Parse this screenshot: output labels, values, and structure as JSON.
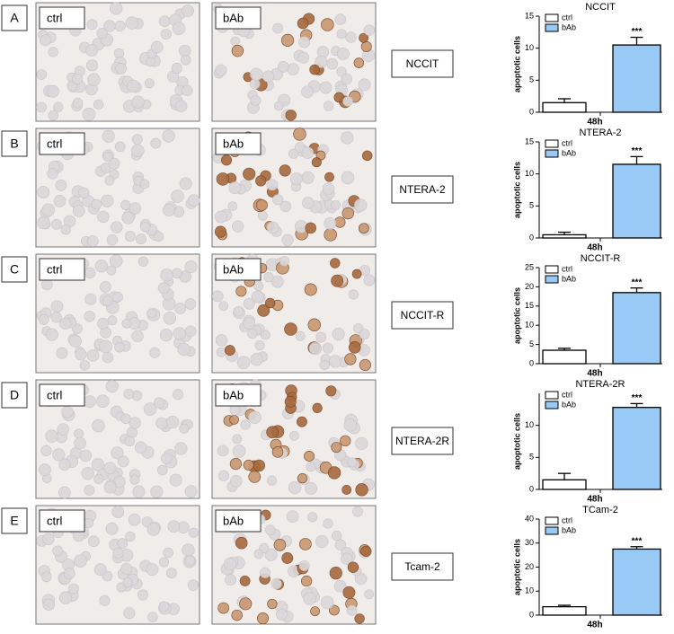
{
  "panels": [
    {
      "letter": "A",
      "ctrl_label": "ctrl",
      "bab_label": "bAb",
      "cell_line": "NCCIT"
    },
    {
      "letter": "B",
      "ctrl_label": "ctrl",
      "bab_label": "bAb",
      "cell_line": "NTERA-2"
    },
    {
      "letter": "C",
      "ctrl_label": "ctrl",
      "bab_label": "bAb",
      "cell_line": "NCCIT-R"
    },
    {
      "letter": "D",
      "ctrl_label": "ctrl",
      "bab_label": "bAb",
      "cell_line": "NTERA-2R"
    },
    {
      "letter": "E",
      "ctrl_label": "ctrl",
      "bab_label": "bAb",
      "cell_line": "Tcam-2"
    }
  ],
  "chart_data": [
    {
      "type": "bar",
      "title": "NCCIT",
      "y_label": "apoptotic cells",
      "categories": [
        "48h"
      ],
      "annotation": "***",
      "ylim": [
        0,
        15
      ],
      "yticks": [
        0,
        5,
        10,
        15
      ],
      "series": [
        {
          "name": "ctrl",
          "color": "#ffffff",
          "values": [
            1.5
          ],
          "errors": [
            0.6
          ]
        },
        {
          "name": "bAb",
          "color": "#99c9f5",
          "values": [
            10.5
          ],
          "errors": [
            1.2
          ]
        }
      ]
    },
    {
      "type": "bar",
      "title": "NTERA-2",
      "y_label": "apoptotic cells",
      "categories": [
        "48h"
      ],
      "annotation": "***",
      "ylim": [
        0,
        15
      ],
      "yticks": [
        0,
        5,
        10,
        15
      ],
      "series": [
        {
          "name": "ctrl",
          "color": "#ffffff",
          "values": [
            0.5
          ],
          "errors": [
            0.4
          ]
        },
        {
          "name": "bAb",
          "color": "#99c9f5",
          "values": [
            11.5
          ],
          "errors": [
            1.2
          ]
        }
      ]
    },
    {
      "type": "bar",
      "title": "NCCIT-R",
      "y_label": "apoptotic cells",
      "categories": [
        "48h"
      ],
      "annotation": "***",
      "ylim": [
        0,
        25
      ],
      "yticks": [
        0,
        5,
        10,
        15,
        20,
        25
      ],
      "series": [
        {
          "name": "ctrl",
          "color": "#ffffff",
          "values": [
            3.5
          ],
          "errors": [
            0.5
          ]
        },
        {
          "name": "bAb",
          "color": "#99c9f5",
          "values": [
            18.5
          ],
          "errors": [
            1.2
          ]
        }
      ]
    },
    {
      "type": "bar",
      "title": "NTERA-2R",
      "y_label": "apoptotic cells",
      "categories": [
        "48h"
      ],
      "annotation": "***",
      "ylim": [
        0,
        15
      ],
      "yticks": [
        0,
        5,
        10
      ],
      "series": [
        {
          "name": "ctrl",
          "color": "#ffffff",
          "values": [
            1.5
          ],
          "errors": [
            1.0
          ]
        },
        {
          "name": "bAb",
          "color": "#99c9f5",
          "values": [
            12.8
          ],
          "errors": [
            0.6
          ]
        }
      ]
    },
    {
      "type": "bar",
      "title": "TCam-2",
      "y_label": "apoptotic cells",
      "categories": [
        "48h"
      ],
      "annotation": "***",
      "ylim": [
        0,
        40
      ],
      "yticks": [
        0,
        10,
        20,
        30,
        40
      ],
      "series": [
        {
          "name": "ctrl",
          "color": "#ffffff",
          "values": [
            3.5
          ],
          "errors": [
            0.6
          ]
        },
        {
          "name": "bAb",
          "color": "#99c9f5",
          "values": [
            27.5
          ],
          "errors": [
            1.0
          ]
        }
      ]
    }
  ]
}
